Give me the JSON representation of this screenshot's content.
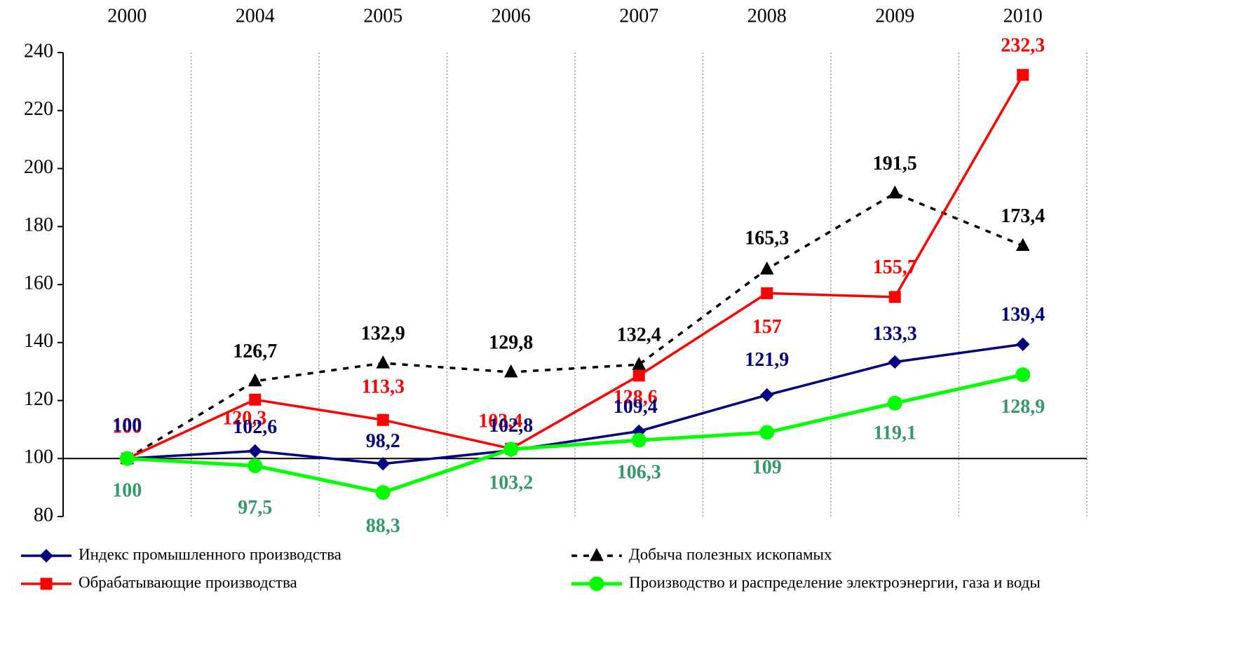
{
  "chart_data": {
    "type": "line",
    "categories": [
      "2000",
      "2004",
      "2005",
      "2006",
      "2007",
      "2008",
      "2009",
      "2010"
    ],
    "ylim": [
      80,
      240
    ],
    "yticks": [
      80,
      100,
      120,
      140,
      160,
      180,
      200,
      220,
      240
    ],
    "grid": true,
    "legend": "bottom",
    "series": [
      {
        "name": "Индекс промышленного производства",
        "color": "#000080",
        "label_color": "#000080",
        "marker": "diamond",
        "dash": false,
        "values": [
          100,
          102.6,
          98.2,
          102.8,
          109.4,
          121.9,
          133.3,
          139.4
        ],
        "value_labels": [
          "100",
          "102,6",
          "98,2",
          "102,8",
          "109,4",
          "121,9",
          "133,3",
          "139,4"
        ]
      },
      {
        "name": "Добыча полезных ископамых",
        "color": "#000000",
        "label_color": "#000000",
        "marker": "triangle",
        "dash": true,
        "values": [
          100,
          126.7,
          132.9,
          129.8,
          132.4,
          165.3,
          191.5,
          173.4
        ],
        "value_labels": [
          null,
          "126,7",
          "132,9",
          "129,8",
          "132,4",
          "165,3",
          "191,5",
          "173,4"
        ]
      },
      {
        "name": "Обрабатывающие производства",
        "color": "#ff0000",
        "label_color": "#ff0000",
        "marker": "square",
        "dash": false,
        "values": [
          100,
          120.3,
          113.3,
          103.4,
          128.6,
          157,
          155.7,
          232.3
        ],
        "value_labels": [
          "100",
          "120,3",
          "113,3",
          "103,4",
          "128,6",
          "157",
          "155,7",
          "232,3"
        ]
      },
      {
        "name": "Производство и распределение электроэнергии, газа и воды",
        "color": "#00ff00",
        "label_color": "#339966",
        "marker": "circle",
        "dash": false,
        "values": [
          100,
          97.5,
          88.3,
          103.2,
          106.3,
          109,
          119.1,
          128.9
        ],
        "value_labels": [
          "100",
          "97,5",
          "88,3",
          "103,2",
          "106,3",
          "109",
          "119,1",
          "128,9"
        ]
      }
    ]
  }
}
